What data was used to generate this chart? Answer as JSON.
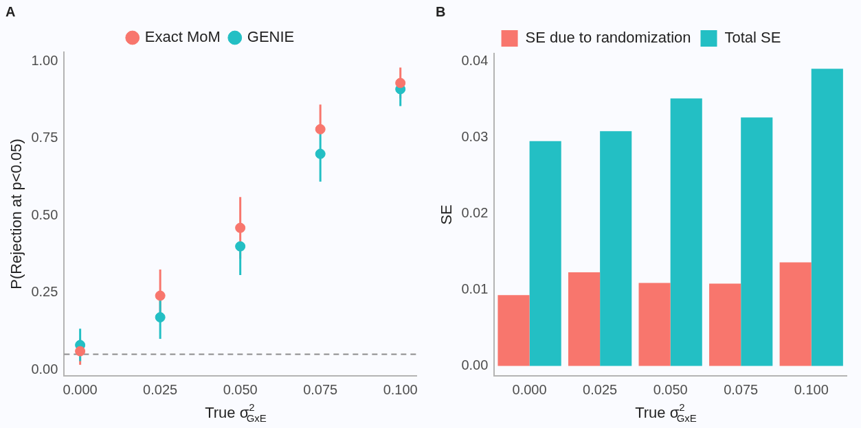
{
  "chart_data": [
    {
      "type": "scatter",
      "title": "A",
      "xlabel": "True σ$^{2}$$_{GxE}$",
      "ylabel": "P(Rejection at p<0.05)",
      "legend": "top",
      "marker": "circle",
      "x": [
        0,
        0.025,
        0.05,
        0.075,
        0.1
      ],
      "series": [
        {
          "name": "Exact MoM",
          "color": "#f8766d",
          "values": [
            0.06,
            0.24,
            0.46,
            0.78,
            0.93
          ],
          "errors": [
            [
              0.016,
              0.1
            ],
            [
              0.155,
              0.325
            ],
            [
              0.36,
              0.56
            ],
            [
              0.78,
              0.86
            ],
            [
              0.88,
              0.98
            ]
          ]
        },
        {
          "name": "GENIE",
          "color": "#23bfc4",
          "values": [
            0.08,
            0.17,
            0.4,
            0.7,
            0.91
          ],
          "errors": [
            [
              0.028,
              0.133
            ],
            [
              0.1,
              0.227
            ],
            [
              0.307,
              0.4
            ],
            [
              0.61,
              0.766
            ],
            [
              0.855,
              0.94
            ]
          ]
        }
      ],
      "xlim": [
        -0.005,
        0.105
      ],
      "xticks": [
        {
          "value": 0,
          "label": "0.000"
        },
        {
          "value": 0.025,
          "label": "0.025"
        },
        {
          "value": 0.05,
          "label": "0.050"
        },
        {
          "value": 0.075,
          "label": "0.075"
        },
        {
          "value": 0.1,
          "label": "0.100"
        }
      ],
      "ylim": [
        -0.02,
        1.03
      ],
      "yticks": [
        {
          "value": 0,
          "label": "0.00"
        },
        {
          "value": 0.25,
          "label": "0.25"
        },
        {
          "value": 0.5,
          "label": "0.50"
        },
        {
          "value": 0.75,
          "label": "0.75"
        },
        {
          "value": 1,
          "label": "1.00"
        }
      ],
      "ref_lines": [
        {
          "axis": "y",
          "value": 0.05,
          "color": "#8c8c8c",
          "line_style": "dashed"
        }
      ]
    },
    {
      "type": "bar",
      "title": "B",
      "xlabel": "True σ$^{2}$$_{GxE}$",
      "ylabel": "SE",
      "legend": "top",
      "categories": [
        "0.000",
        "0.025",
        "0.050",
        "0.075",
        "0.100"
      ],
      "series": [
        {
          "name": "SE due to randomization",
          "color": "#f8766d",
          "values": [
            0.0093,
            0.0123,
            0.0109,
            0.0108,
            0.0136
          ]
        },
        {
          "name": "Total SE",
          "color": "#23bfc4",
          "values": [
            0.0295,
            0.0308,
            0.0351,
            0.0326,
            0.039
          ]
        }
      ],
      "ylim": [
        -0.0013,
        0.041
      ],
      "yticks": [
        {
          "value": 0,
          "label": "0.00"
        },
        {
          "value": 0.01,
          "label": "0.01"
        },
        {
          "value": 0.02,
          "label": "0.02"
        },
        {
          "value": 0.03,
          "label": "0.03"
        },
        {
          "value": 0.04,
          "label": "0.04"
        }
      ]
    }
  ]
}
